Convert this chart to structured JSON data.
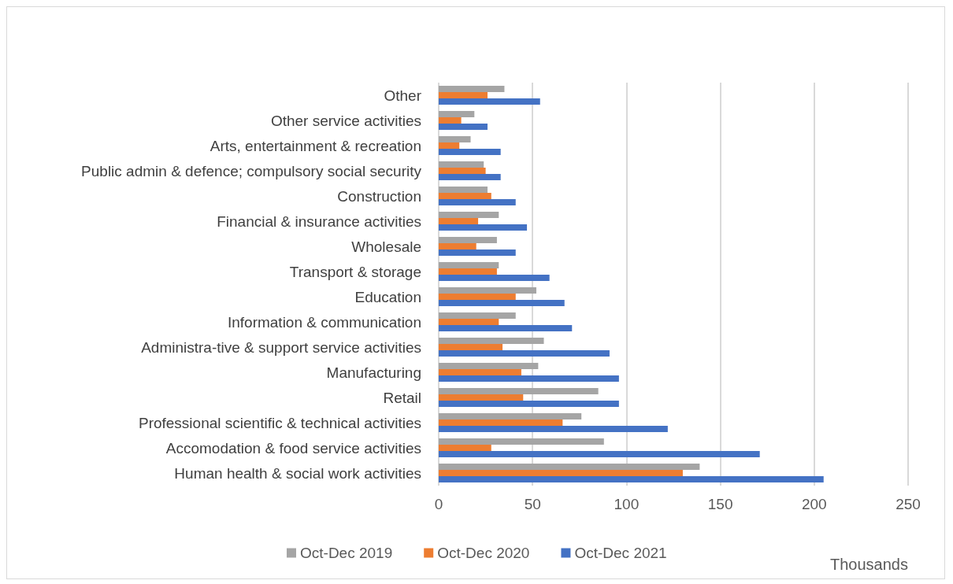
{
  "chart_data": {
    "type": "bar",
    "orientation": "horizontal",
    "categories": [
      "Other",
      "Other service activities",
      "Arts, entertainment & recreation",
      "Public admin & defence; compulsory social security",
      "Construction",
      "Financial & insurance activities",
      "Wholesale",
      "Transport & storage",
      "Education",
      "Information & communication",
      "Administra-tive & support service activities",
      "Manufacturing",
      "Retail",
      "Professional scientific & technical activities",
      "Accomodation & food service activities",
      "Human health & social work activities"
    ],
    "series": [
      {
        "name": "Oct-Dec 2019",
        "color": "#a5a5a5",
        "values": [
          35,
          19,
          17,
          24,
          26,
          32,
          31,
          32,
          52,
          41,
          56,
          53,
          85,
          76,
          88,
          139
        ]
      },
      {
        "name": "Oct-Dec 2020",
        "color": "#ed7d31",
        "values": [
          26,
          12,
          11,
          25,
          28,
          21,
          20,
          31,
          41,
          32,
          34,
          44,
          45,
          66,
          28,
          130
        ]
      },
      {
        "name": "Oct-Dec 2021",
        "color": "#4472c4",
        "values": [
          54,
          26,
          33,
          33,
          41,
          47,
          41,
          59,
          67,
          71,
          91,
          96,
          96,
          122,
          171,
          205
        ]
      }
    ],
    "xlabel": "Thousands",
    "xlim": [
      0,
      250
    ],
    "xticks": [
      0,
      50,
      100,
      150,
      200,
      250
    ],
    "grid": "x",
    "legend": "bottom"
  }
}
